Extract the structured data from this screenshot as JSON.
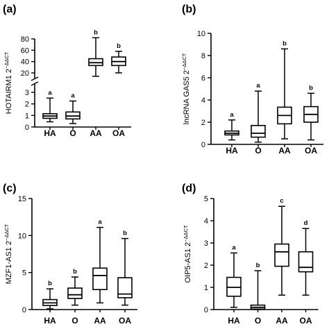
{
  "chart_data": [
    {
      "type": "box",
      "panel_label": "(a)",
      "ylabel": "HOTAIRM1 2",
      "ylabel_superscript": "−ΔΔCT",
      "categories": [
        "HA",
        "O",
        "AA",
        "OA"
      ],
      "y_axis": "broken",
      "segments": [
        {
          "ylim": [
            0,
            3
          ],
          "ticks": [
            0,
            1,
            2,
            3
          ],
          "tick_labels": [
            "0",
            "1",
            "2",
            "3"
          ]
        },
        {
          "ylim": [
            20,
            80
          ],
          "ticks": [
            20,
            40,
            60,
            80
          ],
          "tick_labels": [
            "20",
            "40",
            "60",
            "80"
          ]
        }
      ],
      "boxes": [
        {
          "category": "HA",
          "min": 0.45,
          "q1": 0.75,
          "median": 0.95,
          "q3": 1.15,
          "max": 2.5,
          "letter": "a"
        },
        {
          "category": "O",
          "min": 0.3,
          "q1": 0.7,
          "median": 0.95,
          "q3": 1.3,
          "max": 2.25,
          "letter": "a"
        },
        {
          "category": "AA",
          "min": 14,
          "q1": 33,
          "median": 38,
          "q3": 45,
          "max": 82,
          "letter": "b"
        },
        {
          "category": "OA",
          "min": 20,
          "q1": 33,
          "median": 40,
          "q3": 48,
          "max": 58,
          "letter": "b"
        }
      ]
    },
    {
      "type": "box",
      "panel_label": "(b)",
      "ylabel": "lncRNA GAS5 2",
      "ylabel_superscript": "−ΔΔCT",
      "categories": [
        "HA",
        "O",
        "AA",
        "OA"
      ],
      "ylim": [
        0,
        10
      ],
      "ticks": [
        0,
        2,
        4,
        6,
        8,
        10
      ],
      "tick_labels": [
        "0",
        "2",
        "4",
        "6",
        "8",
        "10"
      ],
      "boxes": [
        {
          "category": "HA",
          "min": 0.4,
          "q1": 0.85,
          "median": 1.0,
          "q3": 1.2,
          "max": 2.2,
          "letter": "a"
        },
        {
          "category": "O",
          "min": 0.2,
          "q1": 0.65,
          "median": 1.0,
          "q3": 1.7,
          "max": 4.8,
          "letter": "a"
        },
        {
          "category": "AA",
          "min": 0.5,
          "q1": 1.85,
          "median": 2.6,
          "q3": 3.35,
          "max": 8.6,
          "letter": "b"
        },
        {
          "category": "OA",
          "min": 0.4,
          "q1": 2.0,
          "median": 2.7,
          "q3": 3.4,
          "max": 4.6,
          "letter": "b"
        }
      ]
    },
    {
      "type": "box",
      "panel_label": "(c)",
      "ylabel": "MZF1-AS1 2",
      "ylabel_superscript": "−ΔΔCT",
      "categories": [
        "HA",
        "O",
        "AA",
        "OA"
      ],
      "ylim": [
        0,
        15
      ],
      "ticks": [
        0,
        5,
        10,
        15
      ],
      "tick_labels": [
        "0",
        "5",
        "10",
        "15"
      ],
      "boxes": [
        {
          "category": "HA",
          "min": 0.1,
          "q1": 0.55,
          "median": 0.9,
          "q3": 1.35,
          "max": 2.8,
          "letter": "b"
        },
        {
          "category": "O",
          "min": 0.6,
          "q1": 1.5,
          "median": 2.0,
          "q3": 2.9,
          "max": 4.4,
          "letter": "b"
        },
        {
          "category": "AA",
          "min": 0.9,
          "q1": 2.7,
          "median": 4.6,
          "q3": 5.6,
          "max": 11.1,
          "letter": "a"
        },
        {
          "category": "OA",
          "min": 0.6,
          "q1": 1.6,
          "median": 2.1,
          "q3": 4.3,
          "max": 9.6,
          "letter": "b"
        }
      ]
    },
    {
      "type": "box",
      "panel_label": "(d)",
      "ylabel": "OIP5-AS1 2",
      "ylabel_superscript": "−ΔΔCT",
      "categories": [
        "HA",
        "O",
        "AA",
        "OA"
      ],
      "ylim": [
        0,
        5
      ],
      "ticks": [
        0,
        1,
        2,
        3,
        4,
        5
      ],
      "tick_labels": [
        "0",
        "1",
        "2",
        "3",
        "4",
        "5"
      ],
      "boxes": [
        {
          "category": "HA",
          "min": 0.1,
          "q1": 0.6,
          "median": 1.0,
          "q3": 1.45,
          "max": 2.55,
          "letter": "a"
        },
        {
          "category": "O",
          "min": 0.0,
          "q1": 0.02,
          "median": 0.1,
          "q3": 0.2,
          "max": 1.75,
          "letter": "b"
        },
        {
          "category": "AA",
          "min": 0.65,
          "q1": 1.95,
          "median": 2.6,
          "q3": 2.95,
          "max": 4.65,
          "letter": "c"
        },
        {
          "category": "OA",
          "min": 0.65,
          "q1": 1.7,
          "median": 1.9,
          "q3": 2.6,
          "max": 3.65,
          "letter": "d"
        }
      ]
    }
  ]
}
